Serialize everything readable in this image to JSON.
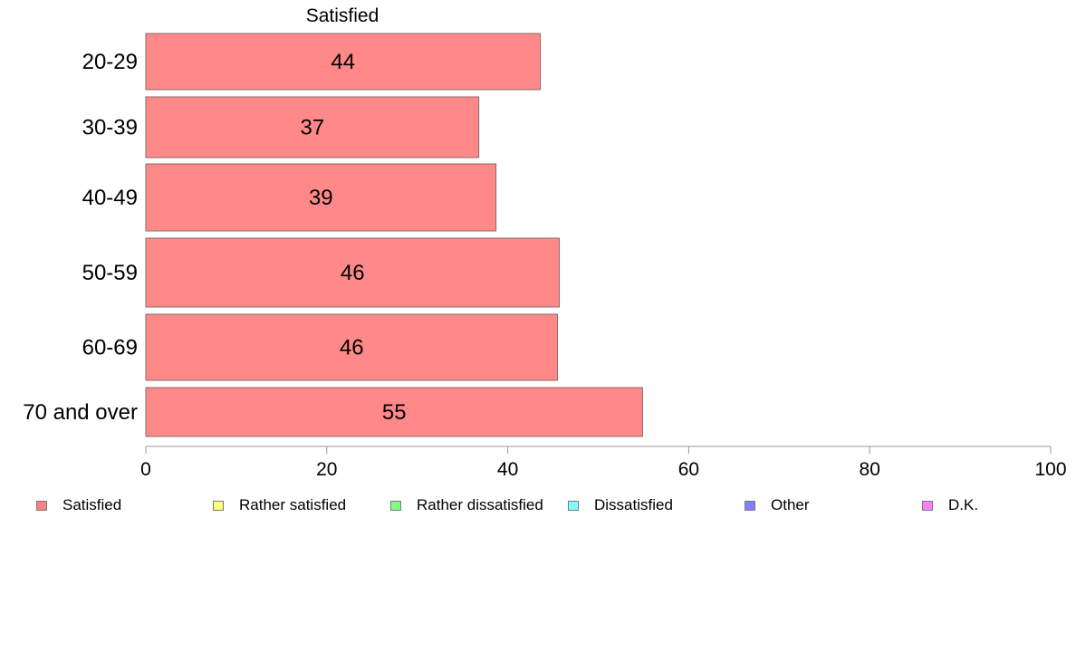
{
  "chart_data": {
    "type": "bar",
    "orientation": "horizontal",
    "title": "Satisfied",
    "categories": [
      "20-29",
      "30-39",
      "40-49",
      "50-59",
      "60-69",
      "70 and over"
    ],
    "series": [
      {
        "name": "Satisfied",
        "values": [
          43.6,
          36.8,
          38.7,
          45.7,
          45.5,
          54.9
        ],
        "labels": [
          "44",
          "37",
          "39",
          "46",
          "46",
          "55"
        ],
        "color": "#ff8888"
      }
    ],
    "xlim": [
      0,
      100
    ],
    "x_ticks": [
      0,
      20,
      40,
      60,
      80,
      100
    ],
    "grid": false,
    "legend_position": "bottom",
    "legend": [
      {
        "label": "Satisfied",
        "color": "#ff8080"
      },
      {
        "label": "Rather satisfied",
        "color": "#ffff80"
      },
      {
        "label": "Rather dissatisfied",
        "color": "#80ff80"
      },
      {
        "label": "Dissatisfied",
        "color": "#80ffff"
      },
      {
        "label": "Other",
        "color": "#8080ff"
      },
      {
        "label": "D.K.",
        "color": "#ff80ff"
      }
    ]
  }
}
